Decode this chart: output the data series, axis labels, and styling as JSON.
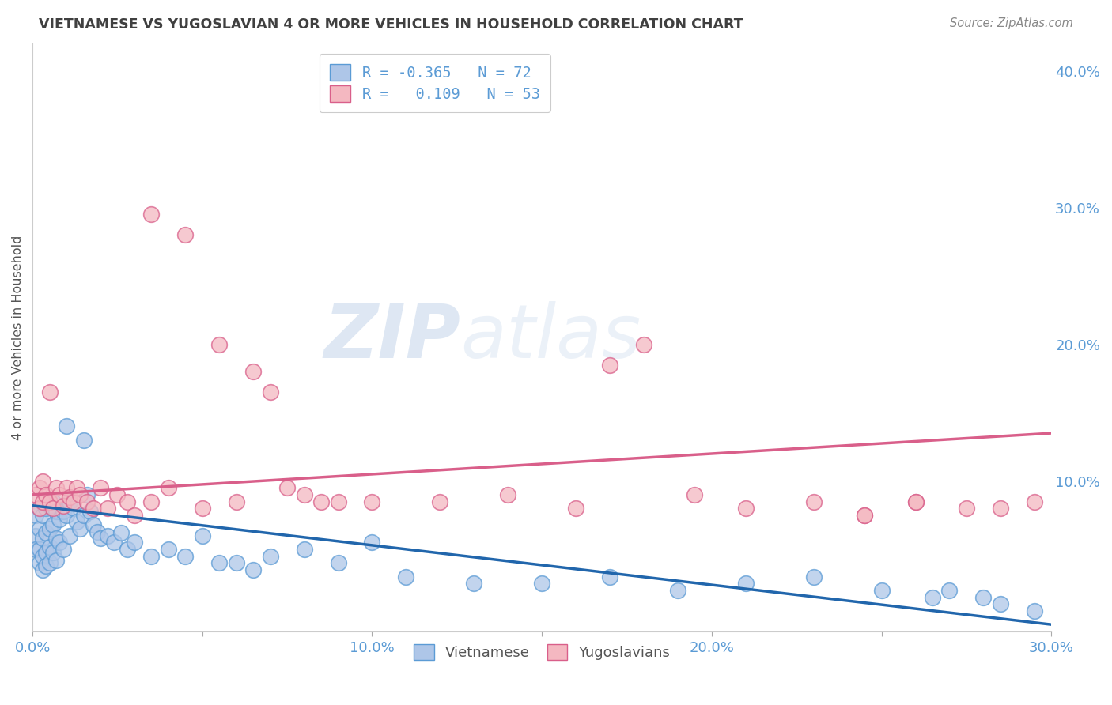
{
  "title": "VIETNAMESE VS YUGOSLAVIAN 4 OR MORE VEHICLES IN HOUSEHOLD CORRELATION CHART",
  "source": "Source: ZipAtlas.com",
  "ylabel": "4 or more Vehicles in Household",
  "xlim": [
    0.0,
    0.3
  ],
  "ylim": [
    -0.01,
    0.42
  ],
  "y_ticks_right": [
    0.0,
    0.1,
    0.2,
    0.3,
    0.4
  ],
  "y_tick_labels_right": [
    "",
    "10.0%",
    "20.0%",
    "30.0%",
    "40.0%"
  ],
  "x_ticks": [
    0.0,
    0.05,
    0.1,
    0.15,
    0.2,
    0.25,
    0.3
  ],
  "x_tick_labels": [
    "0.0%",
    "",
    "10.0%",
    "",
    "20.0%",
    "",
    "30.0%"
  ],
  "watermark_zip": "ZIP",
  "watermark_atlas": "atlas",
  "background_color": "#ffffff",
  "grid_color": "#c8c8c8",
  "title_color": "#404040",
  "source_color": "#888888",
  "blue_face": "#aec6e8",
  "blue_edge": "#5b9bd5",
  "pink_face": "#f4b8c1",
  "pink_edge": "#d95f8a",
  "blue_line": "#2166ac",
  "pink_line": "#d95f8a",
  "tick_color": "#5b9bd5",
  "blue_x": [
    0.001,
    0.001,
    0.001,
    0.002,
    0.002,
    0.002,
    0.002,
    0.003,
    0.003,
    0.003,
    0.003,
    0.004,
    0.004,
    0.004,
    0.004,
    0.005,
    0.005,
    0.005,
    0.005,
    0.006,
    0.006,
    0.006,
    0.007,
    0.007,
    0.007,
    0.008,
    0.008,
    0.009,
    0.009,
    0.01,
    0.01,
    0.011,
    0.011,
    0.012,
    0.013,
    0.014,
    0.015,
    0.015,
    0.016,
    0.017,
    0.018,
    0.019,
    0.02,
    0.022,
    0.024,
    0.026,
    0.028,
    0.03,
    0.035,
    0.04,
    0.045,
    0.05,
    0.055,
    0.06,
    0.065,
    0.07,
    0.08,
    0.09,
    0.1,
    0.11,
    0.13,
    0.15,
    0.17,
    0.19,
    0.21,
    0.23,
    0.25,
    0.265,
    0.27,
    0.28,
    0.285,
    0.295
  ],
  "blue_y": [
    0.075,
    0.06,
    0.05,
    0.08,
    0.065,
    0.05,
    0.04,
    0.075,
    0.058,
    0.045,
    0.035,
    0.08,
    0.062,
    0.048,
    0.038,
    0.082,
    0.065,
    0.052,
    0.04,
    0.085,
    0.068,
    0.048,
    0.078,
    0.058,
    0.042,
    0.072,
    0.055,
    0.078,
    0.05,
    0.14,
    0.075,
    0.085,
    0.06,
    0.08,
    0.07,
    0.065,
    0.13,
    0.075,
    0.09,
    0.078,
    0.068,
    0.063,
    0.058,
    0.06,
    0.055,
    0.062,
    0.05,
    0.055,
    0.045,
    0.05,
    0.045,
    0.06,
    0.04,
    0.04,
    0.035,
    0.045,
    0.05,
    0.04,
    0.055,
    0.03,
    0.025,
    0.025,
    0.03,
    0.02,
    0.025,
    0.03,
    0.02,
    0.015,
    0.02,
    0.015,
    0.01,
    0.005
  ],
  "pink_x": [
    0.001,
    0.002,
    0.002,
    0.003,
    0.003,
    0.004,
    0.005,
    0.005,
    0.006,
    0.007,
    0.008,
    0.009,
    0.01,
    0.011,
    0.012,
    0.013,
    0.014,
    0.016,
    0.018,
    0.02,
    0.022,
    0.025,
    0.028,
    0.03,
    0.035,
    0.04,
    0.05,
    0.06,
    0.07,
    0.08,
    0.09,
    0.1,
    0.12,
    0.14,
    0.16,
    0.18,
    0.195,
    0.21,
    0.23,
    0.245,
    0.26,
    0.275,
    0.285,
    0.295,
    0.035,
    0.045,
    0.055,
    0.065,
    0.075,
    0.085,
    0.17,
    0.245,
    0.26
  ],
  "pink_y": [
    0.09,
    0.08,
    0.095,
    0.085,
    0.1,
    0.09,
    0.085,
    0.165,
    0.08,
    0.095,
    0.09,
    0.082,
    0.095,
    0.088,
    0.085,
    0.095,
    0.09,
    0.085,
    0.08,
    0.095,
    0.08,
    0.09,
    0.085,
    0.075,
    0.085,
    0.095,
    0.08,
    0.085,
    0.165,
    0.09,
    0.085,
    0.085,
    0.085,
    0.09,
    0.08,
    0.2,
    0.09,
    0.08,
    0.085,
    0.075,
    0.085,
    0.08,
    0.08,
    0.085,
    0.295,
    0.28,
    0.2,
    0.18,
    0.095,
    0.085,
    0.185,
    0.075,
    0.085
  ]
}
